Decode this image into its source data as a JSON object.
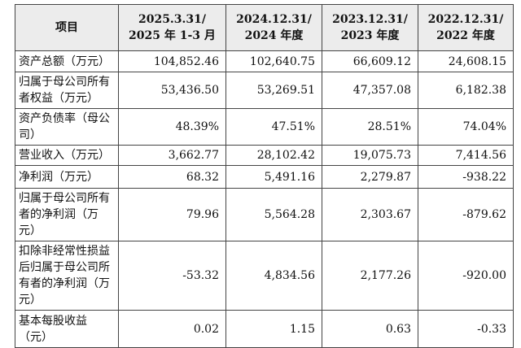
{
  "table": {
    "header": [
      [
        "项目"
      ],
      [
        "2025.3.31/",
        "2025 年 1-3 月"
      ],
      [
        "2024.12.31/",
        "2024 年度"
      ],
      [
        "2023.12.31/",
        "2023 年度"
      ],
      [
        "2022.12.31/",
        "2022 年度"
      ]
    ],
    "rows": [
      [
        "资产总额（万元）",
        "104,852.46",
        "102,640.75",
        "66,609.12",
        "24,608.15"
      ],
      [
        "归属于母公司所有者权益（万元）",
        "53,436.50",
        "53,269.51",
        "47,357.08",
        "6,182.38"
      ],
      [
        "资产负债率（母公司）",
        "48.39%",
        "47.51%",
        "28.51%",
        "74.04%"
      ],
      [
        "营业收入（万元）",
        "3,662.77",
        "28,102.42",
        "19,075.73",
        "7,414.56"
      ],
      [
        "净利润（万元）",
        "68.32",
        "5,491.16",
        "2,279.87",
        "-938.22"
      ],
      [
        "归属于母公司所有者的净利润（万元）",
        "79.96",
        "5,564.28",
        "2,303.67",
        "-879.62"
      ],
      [
        "扣除非经常性损益后归属于母公司所有者的净利润（万元）",
        "-53.32",
        "4,834.56",
        "2,177.26",
        "-920.00"
      ],
      [
        "基本每股收益（元）",
        "0.02",
        "1.15",
        "0.63",
        "-0.33"
      ]
    ]
  }
}
